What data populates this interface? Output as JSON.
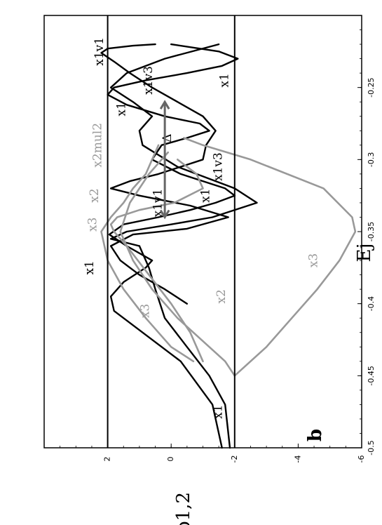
{
  "chart_data": {
    "type": "line",
    "xlabel": "Ej",
    "ylabel": "b1,2",
    "panel_label": "b",
    "xlim": [
      -0.5,
      -0.2
    ],
    "ylim": [
      -6,
      4
    ],
    "x_ticks": [
      {
        "value": -0.5,
        "label": "-0.5"
      },
      {
        "value": -0.45,
        "label": "-0.45"
      },
      {
        "value": -0.4,
        "label": "-0.4"
      },
      {
        "value": -0.35,
        "label": "-0.35"
      },
      {
        "value": -0.3,
        "label": "-0.3"
      },
      {
        "value": -0.25,
        "label": "-0.25"
      }
    ],
    "y_ticks": [
      {
        "value": -6,
        "label": "-6"
      },
      {
        "value": -4,
        "label": "-4"
      },
      {
        "value": -2,
        "label": "-2"
      },
      {
        "value": 0,
        "label": "0"
      },
      {
        "value": 2,
        "label": "2"
      }
    ],
    "hlines": [
      2,
      -2
    ],
    "series": [
      {
        "color": "#000000",
        "x": [
          -0.5,
          -0.47,
          -0.44,
          -0.42,
          -0.405,
          -0.395,
          -0.385,
          -0.375,
          -0.37
        ],
        "y": [
          -1.6,
          -1.3,
          -0.3,
          0.9,
          1.8,
          1.9,
          1.5,
          0.8,
          0.6
        ]
      },
      {
        "color": "#000000",
        "x": [
          -0.5,
          -0.47,
          -0.45,
          -0.43,
          -0.41,
          -0.39,
          -0.375,
          -0.36
        ],
        "y": [
          -1.85,
          -1.7,
          -1.2,
          -0.5,
          0.2,
          0.5,
          0.7,
          1.0
        ]
      },
      {
        "color": "#000000",
        "x": [
          -0.37,
          -0.36,
          -0.352,
          -0.345,
          -0.34,
          -0.335,
          -0.33,
          -0.325,
          -0.32,
          -0.31,
          -0.3,
          -0.29,
          -0.285,
          -0.28,
          -0.275,
          -0.27,
          -0.262,
          -0.255,
          -0.25,
          -0.245,
          -0.24,
          -0.235,
          -0.23,
          -0.225,
          -0.22
        ],
        "y": [
          0.6,
          1.4,
          1.95,
          1.5,
          0.4,
          -0.6,
          -1.4,
          -2.0,
          -1.7,
          -0.3,
          0.6,
          0.3,
          -0.5,
          -1.2,
          -0.9,
          0.2,
          1.4,
          2.0,
          1.8,
          0.8,
          -0.5,
          -1.6,
          -2.1,
          -1.5,
          0.0
        ]
      },
      {
        "color": "#000000",
        "x": [
          -0.36,
          -0.355,
          -0.35,
          -0.345,
          -0.34,
          -0.33,
          -0.32,
          -0.305,
          -0.29,
          -0.28,
          -0.27,
          -0.26,
          -0.25,
          -0.24,
          -0.23,
          -0.22
        ],
        "y": [
          1.0,
          1.9,
          1.4,
          0.0,
          -1.3,
          -2.7,
          -2.0,
          -0.2,
          0.9,
          1.0,
          0.6,
          1.2,
          1.9,
          1.4,
          0.2,
          -1.5
        ]
      },
      {
        "color": "#000000",
        "x": [
          -0.4,
          -0.39,
          -0.38,
          -0.37,
          -0.36,
          -0.352,
          -0.348,
          -0.34,
          -0.332,
          -0.325,
          -0.32,
          -0.315,
          -0.31,
          -0.305,
          -0.3,
          -0.29,
          -0.28,
          -0.27,
          -0.26,
          -0.25,
          -0.24,
          -0.232,
          -0.226,
          -0.223,
          -0.221,
          -0.22
        ],
        "y": [
          -0.5,
          0.2,
          1.0,
          1.6,
          1.9,
          1.2,
          -0.5,
          -1.8,
          -0.6,
          1.0,
          1.9,
          1.3,
          0.4,
          -0.3,
          -1.0,
          -1.1,
          -1.4,
          -1.0,
          -0.2,
          0.6,
          1.3,
          1.8,
          2.2,
          2.0,
          1.2,
          0.5
        ]
      },
      {
        "color": "#999999",
        "x": [
          -0.44,
          -0.42,
          -0.4,
          -0.38,
          -0.36,
          -0.35,
          -0.345,
          -0.34,
          -0.335,
          -0.33,
          -0.32,
          -0.31,
          -0.3
        ],
        "y": [
          -1.0,
          -0.6,
          0.0,
          0.7,
          1.4,
          1.8,
          1.9,
          1.7,
          1.0,
          -0.1,
          -1.0,
          -0.8,
          -0.2
        ]
      },
      {
        "color": "#999999",
        "x": [
          -0.44,
          -0.43,
          -0.41,
          -0.39,
          -0.37,
          -0.35,
          -0.34,
          -0.33,
          -0.32,
          -0.31,
          -0.3,
          -0.29
        ],
        "y": [
          -0.7,
          0.0,
          0.8,
          1.5,
          2.0,
          2.2,
          1.9,
          1.5,
          1.2,
          0.8,
          0.6,
          0.4
        ]
      },
      {
        "color": "#999999",
        "x": [
          -0.45,
          -0.44,
          -0.43,
          -0.41,
          -0.39,
          -0.37,
          -0.35,
          -0.33,
          -0.31,
          -0.3,
          -0.295
        ],
        "y": [
          -2.0,
          -1.7,
          -1.2,
          -0.2,
          0.6,
          1.2,
          1.6,
          1.3,
          0.7,
          0.3,
          0.1
        ]
      },
      {
        "color": "#999999",
        "x": [
          -0.45,
          -0.43,
          -0.41,
          -0.39,
          -0.37,
          -0.35,
          -0.34,
          -0.32,
          -0.3,
          -0.29,
          -0.285
        ],
        "y": [
          -2.0,
          -3.0,
          -3.8,
          -4.6,
          -5.3,
          -5.8,
          -5.7,
          -4.8,
          -2.5,
          -1.0,
          -0.4
        ]
      }
    ],
    "annotations": [
      {
        "text": "x1v1",
        "x": -0.225,
        "y": 2.25,
        "color": "#000000",
        "rotate": -90
      },
      {
        "text": "x1v3",
        "x": -0.245,
        "y": 0.7,
        "color": "#000000",
        "rotate": -90
      },
      {
        "text": "x1",
        "x": -0.245,
        "y": -1.7,
        "color": "#000000",
        "rotate": -90
      },
      {
        "text": "x1",
        "x": -0.265,
        "y": 1.55,
        "color": "#000000",
        "rotate": -90
      },
      {
        "text": "Δ",
        "x": -0.285,
        "y": 0.1,
        "color": "#000000",
        "rotate": -90
      },
      {
        "text": "x2mul2",
        "x": -0.29,
        "y": 2.3,
        "color": "#999999",
        "rotate": -90
      },
      {
        "text": "x2",
        "x": -0.325,
        "y": 2.4,
        "color": "#999999",
        "rotate": -90
      },
      {
        "text": "x3",
        "x": -0.345,
        "y": 2.45,
        "color": "#999999",
        "rotate": -90
      },
      {
        "text": "x1v1",
        "x": -0.33,
        "y": 0.4,
        "color": "#000000",
        "rotate": -90
      },
      {
        "text": "x1v3",
        "x": -0.305,
        "y": -1.5,
        "color": "#000000",
        "rotate": -90
      },
      {
        "text": "x1",
        "x": -0.325,
        "y": -1.1,
        "color": "#000000",
        "rotate": -90
      },
      {
        "text": "x1",
        "x": -0.375,
        "y": 2.55,
        "color": "#000000",
        "rotate": -90
      },
      {
        "text": "x2",
        "x": -0.395,
        "y": -1.6,
        "color": "#999999",
        "rotate": -90
      },
      {
        "text": "x3",
        "x": -0.405,
        "y": 0.8,
        "color": "#999999",
        "rotate": -90
      },
      {
        "text": "x3",
        "x": -0.37,
        "y": -4.5,
        "color": "#999999",
        "rotate": -90
      },
      {
        "text": "x1",
        "x": -0.475,
        "y": -1.5,
        "color": "#000000",
        "rotate": -90
      }
    ]
  }
}
